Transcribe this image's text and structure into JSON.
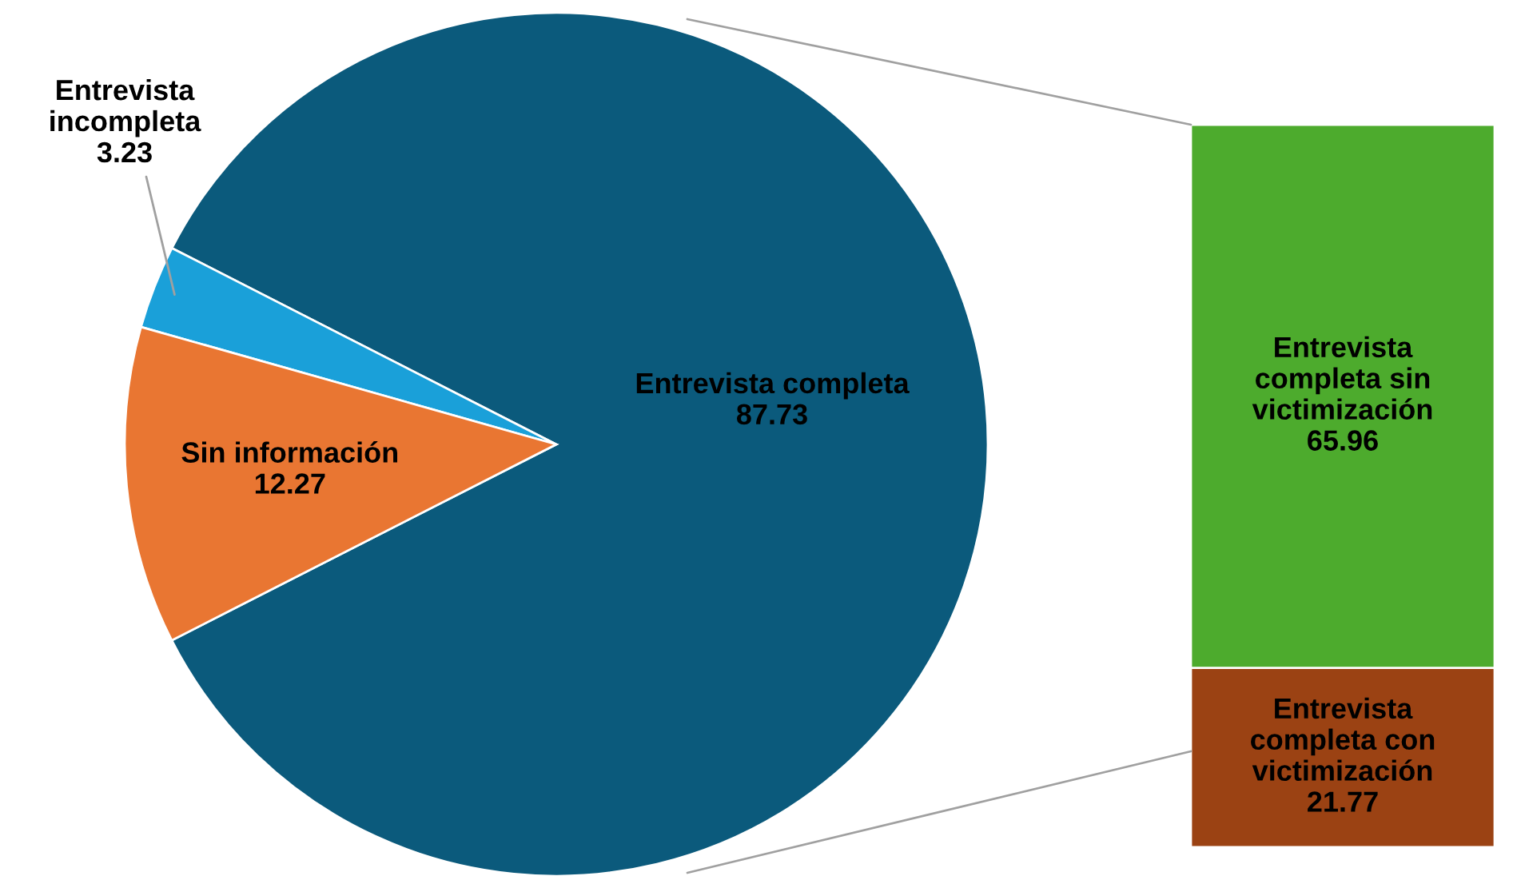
{
  "chart_data": [
    {
      "type": "pie",
      "categories": [
        "Entrevista completa",
        "Entrevista\nincompleta",
        "Sin información"
      ],
      "values": [
        87.73,
        3.23,
        12.27
      ],
      "colors": [
        "#0b5a7c",
        "#1aa0d9",
        "#e97632"
      ],
      "data_labels": true,
      "legend": false
    },
    {
      "type": "bar",
      "stacked": true,
      "tick_labels": false,
      "categories": [
        null
      ],
      "data_labels": true,
      "legend": false,
      "series": [
        {
          "name": "Entrevista\ncompleta con\nvictimización",
          "color": "#9b4213",
          "values": [
            21.77
          ]
        },
        {
          "name": "Entrevista\ncompleta sin\nvictimización",
          "color": "#4dab2d",
          "values": [
            65.96
          ]
        }
      ]
    }
  ]
}
